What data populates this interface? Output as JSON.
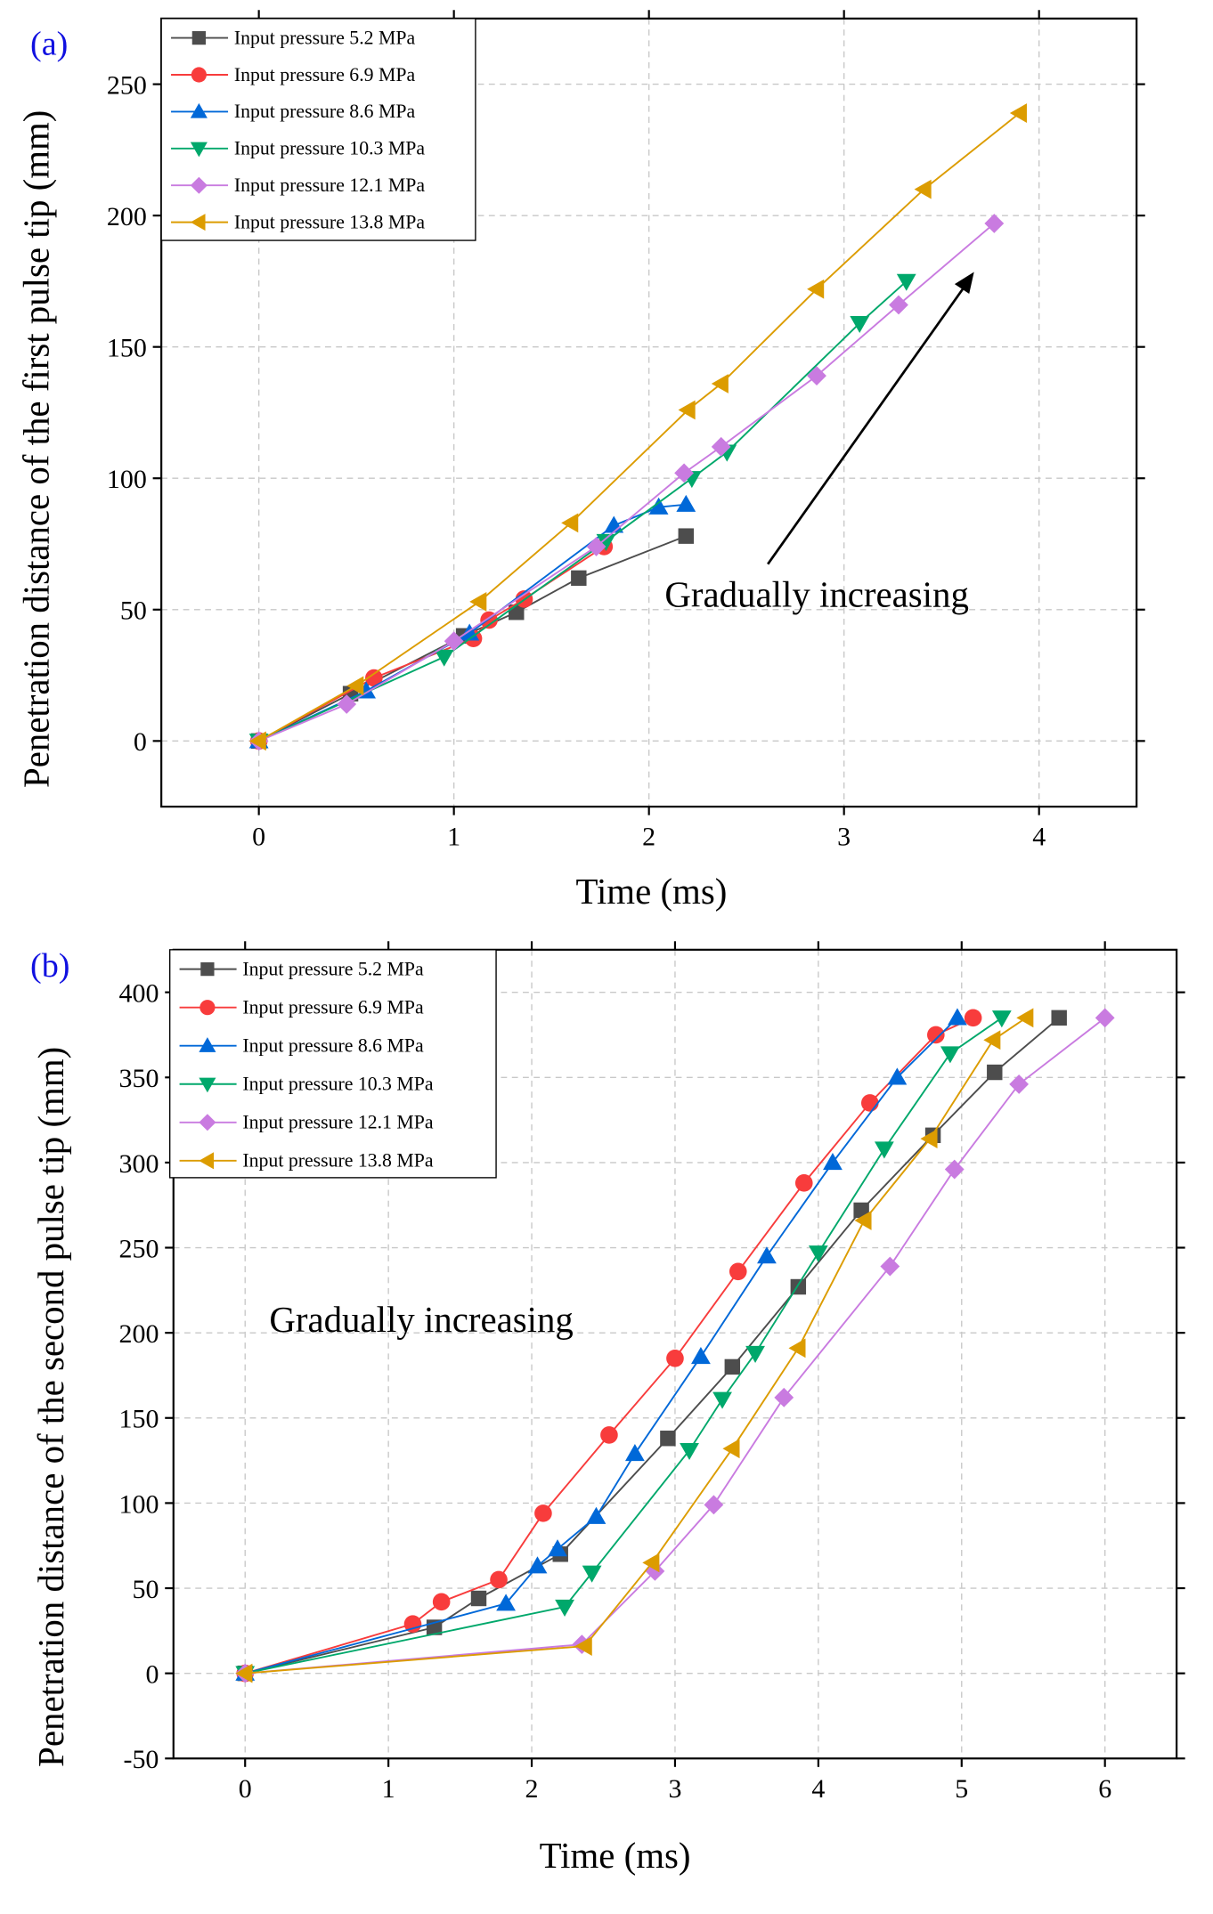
{
  "colors": [
    "#4d4d4d",
    "#f83c3c",
    "#0068d8",
    "#00a86b",
    "#c97be0",
    "#dc9c00"
  ],
  "chart_data": [
    {
      "type": "line",
      "panel_label": "(a)",
      "xlabel": "Time (ms)",
      "ylabel": "Penetration distance of the first pulse tip (mm)",
      "xlim": [
        -0.5,
        4.5
      ],
      "ylim": [
        -25,
        275
      ],
      "xticks": [
        0,
        1,
        2,
        3,
        4
      ],
      "yticks": [
        0,
        50,
        100,
        150,
        200,
        250
      ],
      "grid": true,
      "legend": "top-left",
      "annotation": "Gradually increasing",
      "series": [
        {
          "name": "Input pressure 5.2 MPa",
          "marker": "square",
          "x": [
            0,
            0.47,
            1.05,
            1.32,
            1.64,
            2.19
          ],
          "y": [
            0,
            18,
            40,
            49,
            62,
            78
          ]
        },
        {
          "name": "Input pressure 6.9 MPa",
          "marker": "circle",
          "x": [
            0,
            0.59,
            1.1,
            1.18,
            1.36,
            1.77
          ],
          "y": [
            0,
            24,
            39,
            46,
            54,
            74
          ]
        },
        {
          "name": "Input pressure 8.6 MPa",
          "marker": "triangle-up",
          "x": [
            0,
            0.55,
            1.08,
            1.82,
            2.05,
            2.19
          ],
          "y": [
            0,
            19,
            41,
            82,
            89,
            90
          ]
        },
        {
          "name": "Input pressure 10.3 MPa",
          "marker": "triangle-down",
          "x": [
            0,
            0.95,
            1.78,
            2.22,
            2.4,
            3.08,
            3.32
          ],
          "y": [
            0,
            32,
            76,
            100,
            110,
            159,
            175
          ]
        },
        {
          "name": "Input pressure 12.1 MPa",
          "marker": "diamond",
          "x": [
            0,
            0.45,
            1.0,
            1.73,
            2.18,
            2.37,
            2.86,
            3.28,
            3.77
          ],
          "y": [
            0,
            14,
            38,
            74,
            102,
            112,
            139,
            166,
            197
          ]
        },
        {
          "name": "Input pressure 13.8 MPa",
          "marker": "triangle-left",
          "x": [
            0,
            0.5,
            1.13,
            1.6,
            2.2,
            2.37,
            2.86,
            3.41,
            3.9
          ],
          "y": [
            0,
            21,
            53,
            83,
            126,
            136,
            172,
            210,
            239
          ]
        }
      ]
    },
    {
      "type": "line",
      "panel_label": "(b)",
      "xlabel": "Time (ms)",
      "ylabel": "Penetration distance of the second pulse tip (mm)",
      "xlim": [
        -0.5,
        6.5
      ],
      "ylim": [
        -50,
        425
      ],
      "xticks": [
        0,
        1,
        2,
        3,
        4,
        5,
        6
      ],
      "yticks": [
        -50,
        0,
        50,
        100,
        150,
        200,
        250,
        300,
        350,
        400
      ],
      "grid": true,
      "legend": "top-left",
      "annotation": "Gradually increasing",
      "series": [
        {
          "name": "Input pressure 5.2 MPa",
          "marker": "square",
          "x": [
            0,
            1.32,
            1.63,
            2.2,
            2.95,
            3.4,
            3.86,
            4.3,
            4.8,
            5.23,
            5.68
          ],
          "y": [
            0,
            27,
            44,
            70,
            138,
            180,
            227,
            272,
            316,
            353,
            385
          ]
        },
        {
          "name": "Input pressure 6.9 MPa",
          "marker": "circle",
          "x": [
            0,
            1.17,
            1.37,
            1.77,
            2.08,
            2.54,
            3.0,
            3.44,
            3.9,
            4.36,
            4.82,
            5.08
          ],
          "y": [
            0,
            29,
            42,
            55,
            94,
            140,
            185,
            236,
            288,
            335,
            375,
            385
          ]
        },
        {
          "name": "Input pressure 8.6 MPa",
          "marker": "triangle-up",
          "x": [
            0,
            1.82,
            2.04,
            2.18,
            2.45,
            2.72,
            3.18,
            3.64,
            4.1,
            4.55,
            4.97
          ],
          "y": [
            0,
            41,
            63,
            73,
            92,
            129,
            186,
            245,
            300,
            350,
            385
          ]
        },
        {
          "name": "Input pressure 10.3 MPa",
          "marker": "triangle-down",
          "x": [
            0,
            2.23,
            2.42,
            3.1,
            3.33,
            3.56,
            4.0,
            4.46,
            4.92,
            5.28
          ],
          "y": [
            0,
            39,
            59,
            131,
            161,
            188,
            247,
            308,
            364,
            385
          ]
        },
        {
          "name": "Input pressure 12.1 MPa",
          "marker": "diamond",
          "x": [
            0,
            2.35,
            2.86,
            3.27,
            3.76,
            4.5,
            4.95,
            5.4,
            6.0
          ],
          "y": [
            0,
            17,
            60,
            99,
            162,
            239,
            296,
            346,
            385
          ]
        },
        {
          "name": "Input pressure 13.8 MPa",
          "marker": "triangle-left",
          "x": [
            0,
            2.37,
            2.84,
            3.4,
            3.86,
            4.32,
            4.78,
            5.22,
            5.45
          ],
          "y": [
            0,
            16,
            65,
            132,
            191,
            266,
            314,
            372,
            385
          ]
        }
      ]
    }
  ]
}
